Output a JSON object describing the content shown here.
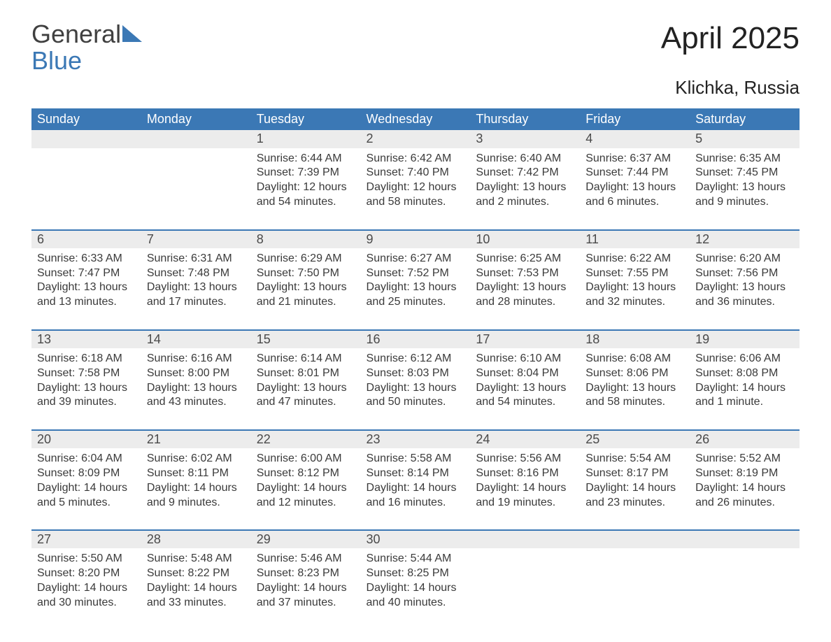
{
  "logo": {
    "line1": "General",
    "line2": "Blue"
  },
  "title": "April 2025",
  "location": "Klichka, Russia",
  "colors": {
    "brand_blue": "#3b78b5",
    "header_text": "#ffffff",
    "daynum_bg": "#ececec",
    "body_text": "#3a3a3a",
    "page_bg": "#ffffff"
  },
  "day_headers": [
    "Sunday",
    "Monday",
    "Tuesday",
    "Wednesday",
    "Thursday",
    "Friday",
    "Saturday"
  ],
  "weeks": [
    {
      "nums": [
        "",
        "",
        "1",
        "2",
        "3",
        "4",
        "5"
      ],
      "cells": [
        null,
        null,
        {
          "sunrise": "Sunrise: 6:44 AM",
          "sunset": "Sunset: 7:39 PM",
          "dl1": "Daylight: 12 hours",
          "dl2": "and 54 minutes."
        },
        {
          "sunrise": "Sunrise: 6:42 AM",
          "sunset": "Sunset: 7:40 PM",
          "dl1": "Daylight: 12 hours",
          "dl2": "and 58 minutes."
        },
        {
          "sunrise": "Sunrise: 6:40 AM",
          "sunset": "Sunset: 7:42 PM",
          "dl1": "Daylight: 13 hours",
          "dl2": "and 2 minutes."
        },
        {
          "sunrise": "Sunrise: 6:37 AM",
          "sunset": "Sunset: 7:44 PM",
          "dl1": "Daylight: 13 hours",
          "dl2": "and 6 minutes."
        },
        {
          "sunrise": "Sunrise: 6:35 AM",
          "sunset": "Sunset: 7:45 PM",
          "dl1": "Daylight: 13 hours",
          "dl2": "and 9 minutes."
        }
      ]
    },
    {
      "nums": [
        "6",
        "7",
        "8",
        "9",
        "10",
        "11",
        "12"
      ],
      "cells": [
        {
          "sunrise": "Sunrise: 6:33 AM",
          "sunset": "Sunset: 7:47 PM",
          "dl1": "Daylight: 13 hours",
          "dl2": "and 13 minutes."
        },
        {
          "sunrise": "Sunrise: 6:31 AM",
          "sunset": "Sunset: 7:48 PM",
          "dl1": "Daylight: 13 hours",
          "dl2": "and 17 minutes."
        },
        {
          "sunrise": "Sunrise: 6:29 AM",
          "sunset": "Sunset: 7:50 PM",
          "dl1": "Daylight: 13 hours",
          "dl2": "and 21 minutes."
        },
        {
          "sunrise": "Sunrise: 6:27 AM",
          "sunset": "Sunset: 7:52 PM",
          "dl1": "Daylight: 13 hours",
          "dl2": "and 25 minutes."
        },
        {
          "sunrise": "Sunrise: 6:25 AM",
          "sunset": "Sunset: 7:53 PM",
          "dl1": "Daylight: 13 hours",
          "dl2": "and 28 minutes."
        },
        {
          "sunrise": "Sunrise: 6:22 AM",
          "sunset": "Sunset: 7:55 PM",
          "dl1": "Daylight: 13 hours",
          "dl2": "and 32 minutes."
        },
        {
          "sunrise": "Sunrise: 6:20 AM",
          "sunset": "Sunset: 7:56 PM",
          "dl1": "Daylight: 13 hours",
          "dl2": "and 36 minutes."
        }
      ]
    },
    {
      "nums": [
        "13",
        "14",
        "15",
        "16",
        "17",
        "18",
        "19"
      ],
      "cells": [
        {
          "sunrise": "Sunrise: 6:18 AM",
          "sunset": "Sunset: 7:58 PM",
          "dl1": "Daylight: 13 hours",
          "dl2": "and 39 minutes."
        },
        {
          "sunrise": "Sunrise: 6:16 AM",
          "sunset": "Sunset: 8:00 PM",
          "dl1": "Daylight: 13 hours",
          "dl2": "and 43 minutes."
        },
        {
          "sunrise": "Sunrise: 6:14 AM",
          "sunset": "Sunset: 8:01 PM",
          "dl1": "Daylight: 13 hours",
          "dl2": "and 47 minutes."
        },
        {
          "sunrise": "Sunrise: 6:12 AM",
          "sunset": "Sunset: 8:03 PM",
          "dl1": "Daylight: 13 hours",
          "dl2": "and 50 minutes."
        },
        {
          "sunrise": "Sunrise: 6:10 AM",
          "sunset": "Sunset: 8:04 PM",
          "dl1": "Daylight: 13 hours",
          "dl2": "and 54 minutes."
        },
        {
          "sunrise": "Sunrise: 6:08 AM",
          "sunset": "Sunset: 8:06 PM",
          "dl1": "Daylight: 13 hours",
          "dl2": "and 58 minutes."
        },
        {
          "sunrise": "Sunrise: 6:06 AM",
          "sunset": "Sunset: 8:08 PM",
          "dl1": "Daylight: 14 hours",
          "dl2": "and 1 minute."
        }
      ]
    },
    {
      "nums": [
        "20",
        "21",
        "22",
        "23",
        "24",
        "25",
        "26"
      ],
      "cells": [
        {
          "sunrise": "Sunrise: 6:04 AM",
          "sunset": "Sunset: 8:09 PM",
          "dl1": "Daylight: 14 hours",
          "dl2": "and 5 minutes."
        },
        {
          "sunrise": "Sunrise: 6:02 AM",
          "sunset": "Sunset: 8:11 PM",
          "dl1": "Daylight: 14 hours",
          "dl2": "and 9 minutes."
        },
        {
          "sunrise": "Sunrise: 6:00 AM",
          "sunset": "Sunset: 8:12 PM",
          "dl1": "Daylight: 14 hours",
          "dl2": "and 12 minutes."
        },
        {
          "sunrise": "Sunrise: 5:58 AM",
          "sunset": "Sunset: 8:14 PM",
          "dl1": "Daylight: 14 hours",
          "dl2": "and 16 minutes."
        },
        {
          "sunrise": "Sunrise: 5:56 AM",
          "sunset": "Sunset: 8:16 PM",
          "dl1": "Daylight: 14 hours",
          "dl2": "and 19 minutes."
        },
        {
          "sunrise": "Sunrise: 5:54 AM",
          "sunset": "Sunset: 8:17 PM",
          "dl1": "Daylight: 14 hours",
          "dl2": "and 23 minutes."
        },
        {
          "sunrise": "Sunrise: 5:52 AM",
          "sunset": "Sunset: 8:19 PM",
          "dl1": "Daylight: 14 hours",
          "dl2": "and 26 minutes."
        }
      ]
    },
    {
      "nums": [
        "27",
        "28",
        "29",
        "30",
        "",
        "",
        ""
      ],
      "cells": [
        {
          "sunrise": "Sunrise: 5:50 AM",
          "sunset": "Sunset: 8:20 PM",
          "dl1": "Daylight: 14 hours",
          "dl2": "and 30 minutes."
        },
        {
          "sunrise": "Sunrise: 5:48 AM",
          "sunset": "Sunset: 8:22 PM",
          "dl1": "Daylight: 14 hours",
          "dl2": "and 33 minutes."
        },
        {
          "sunrise": "Sunrise: 5:46 AM",
          "sunset": "Sunset: 8:23 PM",
          "dl1": "Daylight: 14 hours",
          "dl2": "and 37 minutes."
        },
        {
          "sunrise": "Sunrise: 5:44 AM",
          "sunset": "Sunset: 8:25 PM",
          "dl1": "Daylight: 14 hours",
          "dl2": "and 40 minutes."
        },
        null,
        null,
        null
      ]
    }
  ]
}
